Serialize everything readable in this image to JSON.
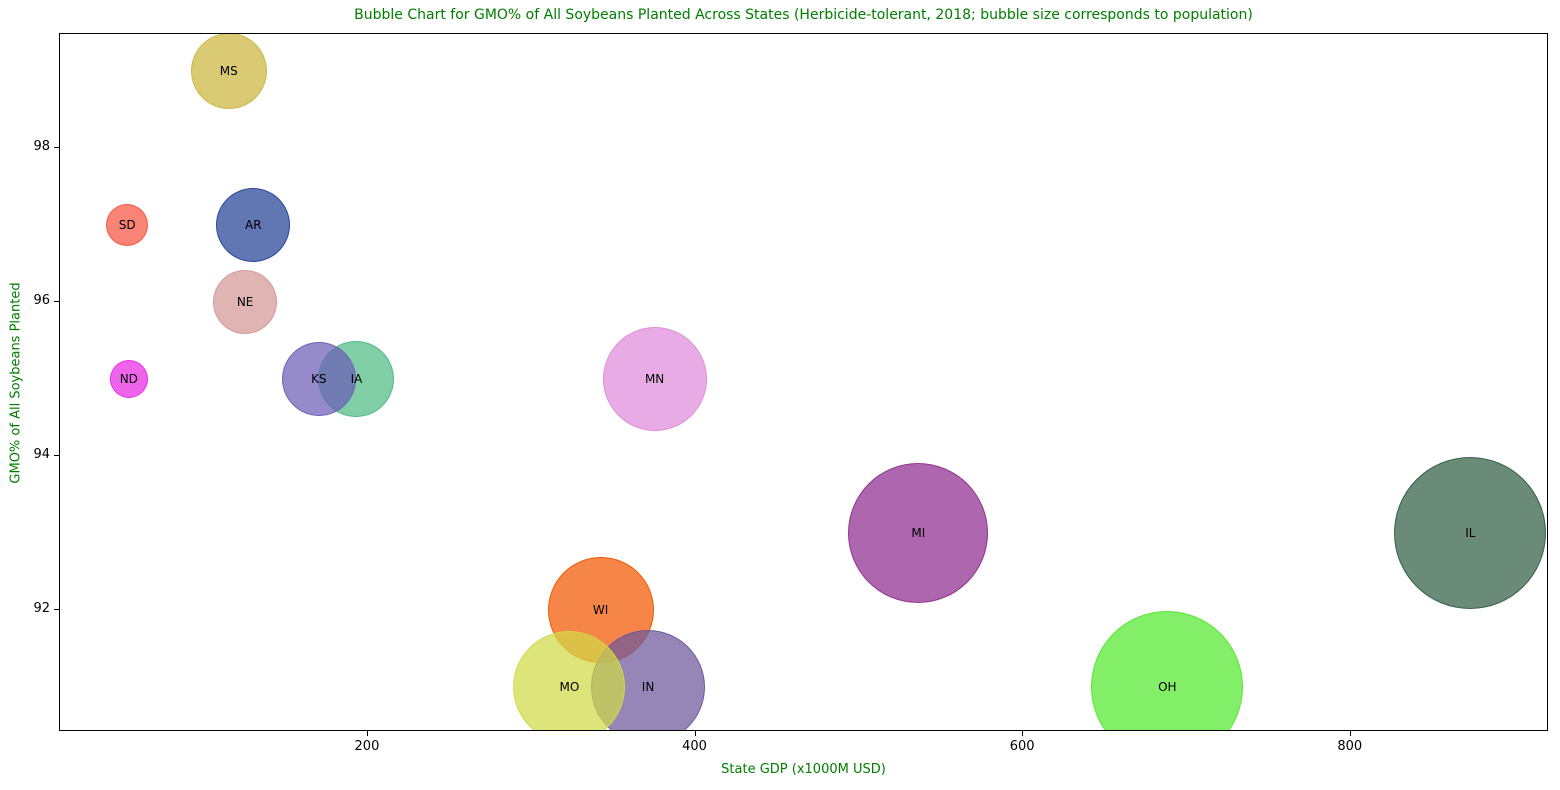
{
  "figure": {
    "background": "#ffffff",
    "accent_text_color": "#007d00",
    "axis_color": "#000000"
  },
  "chart_data": {
    "type": "scatter",
    "subtype": "bubble",
    "title": "Bubble Chart for GMO% of All Soybeans Planted Across States (Herbicide-tolerant, 2018; bubble size corresponds to population)",
    "xlabel": "State GDP (x1000M USD)",
    "ylabel": "GMO% of All Soybeans Planted",
    "xlim": [
      12,
      921
    ],
    "ylim": [
      90.42,
      99.48
    ],
    "xticks": [
      200,
      400,
      600,
      800
    ],
    "yticks": [
      92,
      94,
      96,
      98
    ],
    "grid": false,
    "legend": false,
    "size_meaning": "population",
    "points": [
      {
        "label": "MS",
        "x": 115,
        "y": 99,
        "radius_px": 38,
        "color": "#ccb63f"
      },
      {
        "label": "SD",
        "x": 53,
        "y": 97,
        "radius_px": 21,
        "color": "#f7533f"
      },
      {
        "label": "AR",
        "x": 130,
        "y": 97,
        "radius_px": 37,
        "color": "#224397"
      },
      {
        "label": "NE",
        "x": 125,
        "y": 96,
        "radius_px": 32,
        "color": "#d69797"
      },
      {
        "label": "ND",
        "x": 54,
        "y": 95,
        "radius_px": 19,
        "color": "#e729e4"
      },
      {
        "label": "IA",
        "x": 193,
        "y": 95,
        "radius_px": 38,
        "color": "#4ebb84"
      },
      {
        "label": "KS",
        "x": 170,
        "y": 95,
        "radius_px": 37,
        "color": "#6c5eb7"
      },
      {
        "label": "MN",
        "x": 375,
        "y": 95,
        "radius_px": 52,
        "color": "#e08bdb"
      },
      {
        "label": "MI",
        "x": 536,
        "y": 93,
        "radius_px": 70,
        "color": "#8f2b8f"
      },
      {
        "label": "IL",
        "x": 873,
        "y": 93,
        "radius_px": 76,
        "color": "#305e43"
      },
      {
        "label": "WI",
        "x": 342,
        "y": 92,
        "radius_px": 53,
        "color": "#f25700"
      },
      {
        "label": "IN",
        "x": 371,
        "y": 91,
        "radius_px": 57,
        "color": "#6c579b"
      },
      {
        "label": "MO",
        "x": 323,
        "y": 91,
        "radius_px": 56,
        "color": "#d0da46"
      },
      {
        "label": "OH",
        "x": 688,
        "y": 91,
        "radius_px": 76,
        "color": "#53e82e"
      }
    ]
  }
}
